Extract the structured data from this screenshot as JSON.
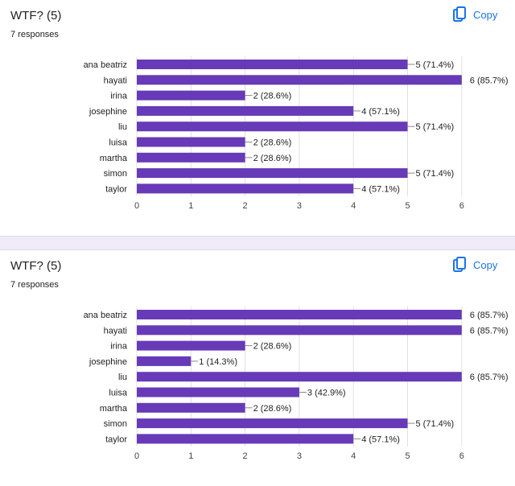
{
  "colors": {
    "bar": "#673ab7",
    "grid": "#e0e0e0",
    "accent": "#1a73e8"
  },
  "questions": [
    {
      "title": "WTF? (5)",
      "responses": "7 responses",
      "copy_label": "Copy",
      "copy_icon": "copy-icon"
    },
    {
      "title": "WTF? (5)",
      "responses": "7 responses",
      "copy_label": "Copy",
      "copy_icon": "copy-icon"
    }
  ],
  "chart_data": [
    {
      "type": "bar",
      "orientation": "horizontal",
      "categories": [
        "ana beatriz",
        "hayati",
        "irina",
        "josephine",
        "liu",
        "luisa",
        "martha",
        "simon",
        "taylor"
      ],
      "values": [
        5,
        6,
        2,
        4,
        5,
        2,
        2,
        5,
        4
      ],
      "data_labels": [
        "5 (71.4%)",
        "6 (85.7%)",
        "2 (28.6%)",
        "4 (57.1%)",
        "5 (71.4%)",
        "2 (28.6%)",
        "2 (28.6%)",
        "5 (71.4%)",
        "4 (57.1%)"
      ],
      "xlim": [
        0,
        6
      ],
      "xticks": [
        "0",
        "1",
        "2",
        "3",
        "4",
        "5",
        "6"
      ],
      "grid": true
    },
    {
      "type": "bar",
      "orientation": "horizontal",
      "categories": [
        "ana beatriz",
        "hayati",
        "irina",
        "josephine",
        "liu",
        "luisa",
        "martha",
        "simon",
        "taylor"
      ],
      "values": [
        6,
        6,
        2,
        1,
        6,
        3,
        2,
        5,
        4
      ],
      "data_labels": [
        "6 (85.7%)",
        "6 (85.7%)",
        "2 (28.6%)",
        "1 (14.3%)",
        "6 (85.7%)",
        "3 (42.9%)",
        "2 (28.6%)",
        "5 (71.4%)",
        "4 (57.1%)"
      ],
      "xlim": [
        0,
        6
      ],
      "xticks": [
        "0",
        "1",
        "2",
        "3",
        "4",
        "5",
        "6"
      ],
      "grid": true
    }
  ]
}
